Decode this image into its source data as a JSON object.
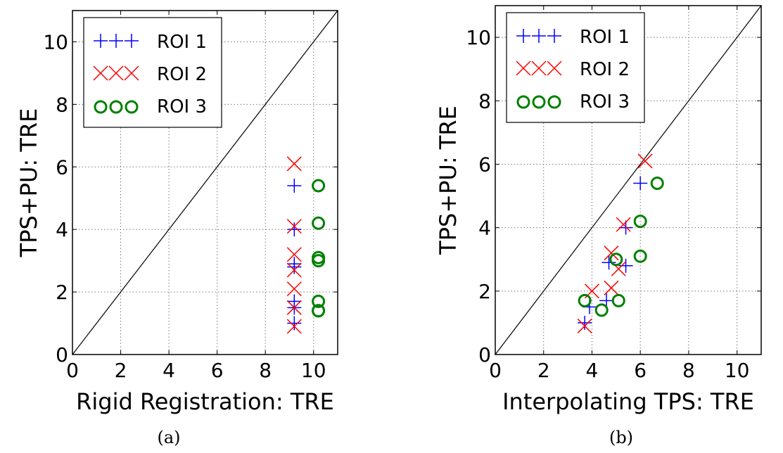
{
  "chart_data": [
    {
      "type": "scatter",
      "caption": "(a)",
      "xlabel": "Rigid Registration: TRE",
      "ylabel": "TPS+PU: TRE",
      "xlim": [
        0,
        11
      ],
      "ylim": [
        0,
        11
      ],
      "xticks": [
        "0",
        "2",
        "4",
        "6",
        "8",
        "10"
      ],
      "yticks": [
        "0",
        "2",
        "4",
        "6",
        "8",
        "10"
      ],
      "grid": true,
      "diagonal": true,
      "legend_position": "top-left",
      "series": [
        {
          "name": "ROI 1",
          "marker": "plus",
          "color": "#0000ff",
          "x": [
            9.2,
            9.2,
            9.2,
            9.2,
            9.2,
            9.2,
            9.2
          ],
          "y": [
            5.4,
            4.0,
            2.9,
            2.8,
            1.7,
            1.5,
            1.0
          ]
        },
        {
          "name": "ROI 2",
          "marker": "x",
          "color": "#ff0000",
          "x": [
            9.2,
            9.2,
            9.2,
            9.2,
            9.2,
            9.2,
            9.2
          ],
          "y": [
            6.1,
            4.1,
            3.2,
            2.7,
            2.1,
            1.5,
            0.9
          ]
        },
        {
          "name": "ROI 3",
          "marker": "circle",
          "color": "#008000",
          "x": [
            10.2,
            10.2,
            10.2,
            10.2,
            10.2,
            10.2,
            10.2
          ],
          "y": [
            5.4,
            4.2,
            3.1,
            3.0,
            1.7,
            1.4,
            1.4
          ]
        }
      ]
    },
    {
      "type": "scatter",
      "caption": "(b)",
      "xlabel": "Interpolating TPS: TRE",
      "ylabel": "TPS+PU: TRE",
      "xlim": [
        0,
        11
      ],
      "ylim": [
        0,
        11
      ],
      "xticks": [
        "0",
        "2",
        "4",
        "6",
        "8",
        "10"
      ],
      "yticks": [
        "0",
        "2",
        "4",
        "6",
        "8",
        "10"
      ],
      "grid": true,
      "diagonal": true,
      "legend_position": "top-left",
      "series": [
        {
          "name": "ROI 1",
          "marker": "plus",
          "color": "#0000ff",
          "x": [
            6.0,
            5.4,
            4.7,
            5.4,
            4.6,
            3.9,
            3.7
          ],
          "y": [
            5.4,
            4.0,
            2.9,
            2.8,
            1.7,
            1.5,
            1.0
          ]
        },
        {
          "name": "ROI 2",
          "marker": "x",
          "color": "#ff0000",
          "x": [
            6.2,
            5.3,
            4.8,
            5.1,
            4.8,
            4.0,
            3.7
          ],
          "y": [
            6.1,
            4.1,
            3.2,
            2.7,
            2.1,
            2.0,
            0.9
          ]
        },
        {
          "name": "ROI 3",
          "marker": "circle",
          "color": "#008000",
          "x": [
            6.7,
            6.0,
            5.0,
            6.0,
            5.1,
            3.7,
            4.4
          ],
          "y": [
            5.4,
            4.2,
            3.0,
            3.1,
            1.7,
            1.7,
            1.4
          ]
        }
      ]
    }
  ]
}
